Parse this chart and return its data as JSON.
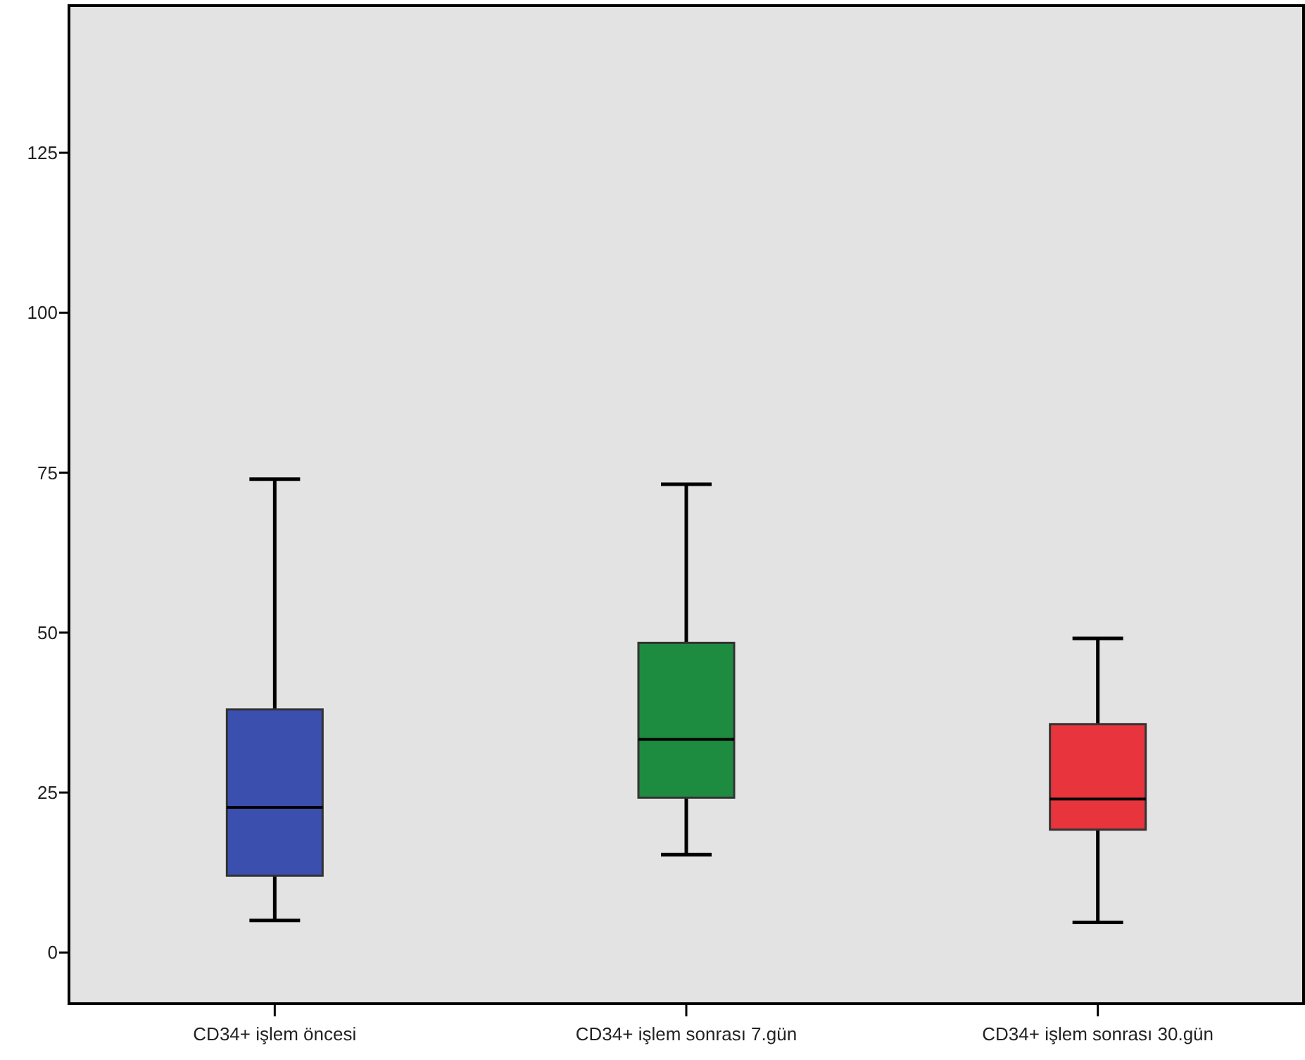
{
  "chart_data": {
    "type": "box",
    "categories": [
      "CD34+ işlem öncesi",
      "CD34+ işlem sonrası 7.gün",
      "CD34+ işlem sonrası 30.gün"
    ],
    "colors": [
      "#3b4fae",
      "#1e8c40",
      "#e8343c"
    ],
    "boxes": [
      {
        "low": 5,
        "q1": 12,
        "median": 22.7,
        "q3": 38,
        "high": 74
      },
      {
        "low": 15.3,
        "q1": 24.2,
        "median": 33.3,
        "q3": 48.4,
        "high": 73.2
      },
      {
        "low": 4.7,
        "q1": 19.2,
        "median": 24,
        "q3": 35.7,
        "high": 49.1
      }
    ],
    "ylim": [
      -8,
      148
    ],
    "yticks": [
      0,
      25,
      50,
      75,
      100,
      125
    ],
    "grid": false
  }
}
